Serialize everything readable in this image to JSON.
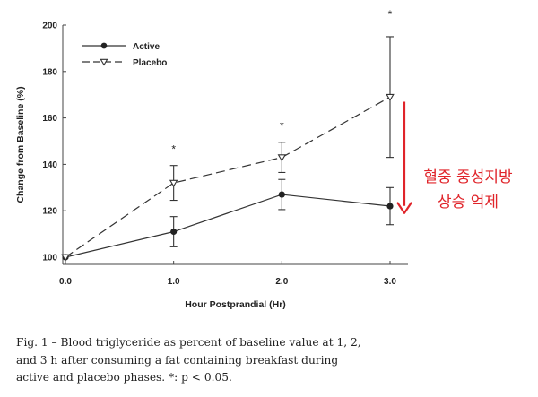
{
  "chart_data": {
    "type": "line",
    "title": "",
    "xlabel": "Hour Postprandial (Hr)",
    "ylabel": "Change from Baseline (%)",
    "x": [
      0.0,
      1.0,
      2.0,
      3.0
    ],
    "x_tick_labels": [
      "0.0",
      "1.0",
      "2.0",
      "3.0"
    ],
    "y_ticks": [
      100,
      120,
      140,
      160,
      180,
      200
    ],
    "xlim": [
      0,
      3.15
    ],
    "ylim": [
      97,
      200
    ],
    "series": [
      {
        "name": "Active",
        "marker": "filled-circle",
        "line": "solid",
        "values": [
          100,
          111,
          127,
          122
        ],
        "error": [
          0,
          6.5,
          6.5,
          8
        ]
      },
      {
        "name": "Placebo",
        "marker": "open-triangle-down",
        "line": "dashed",
        "values": [
          100,
          132,
          143,
          169
        ],
        "error": [
          0,
          7.5,
          6.5,
          26
        ]
      }
    ],
    "significance": {
      "symbol": "*",
      "x": [
        1.0,
        2.0,
        3.0
      ],
      "y_above": [
        145,
        155,
        203
      ]
    },
    "legend": {
      "position": "top-left",
      "entries": [
        "Active",
        "Placebo"
      ]
    },
    "annotation": {
      "lines": [
        "혈중 중성지방",
        "상승 억제"
      ],
      "arrow_color": "#e0242a",
      "arrow_from": 167,
      "arrow_to": 119
    }
  },
  "caption": {
    "lines": [
      "Fig. 1 – Blood triglyceride as percent of baseline value at 1, 2,",
      "and 3 h after consuming a fat containing breakfast during",
      "active and placebo phases. *: p < 0.05."
    ]
  }
}
